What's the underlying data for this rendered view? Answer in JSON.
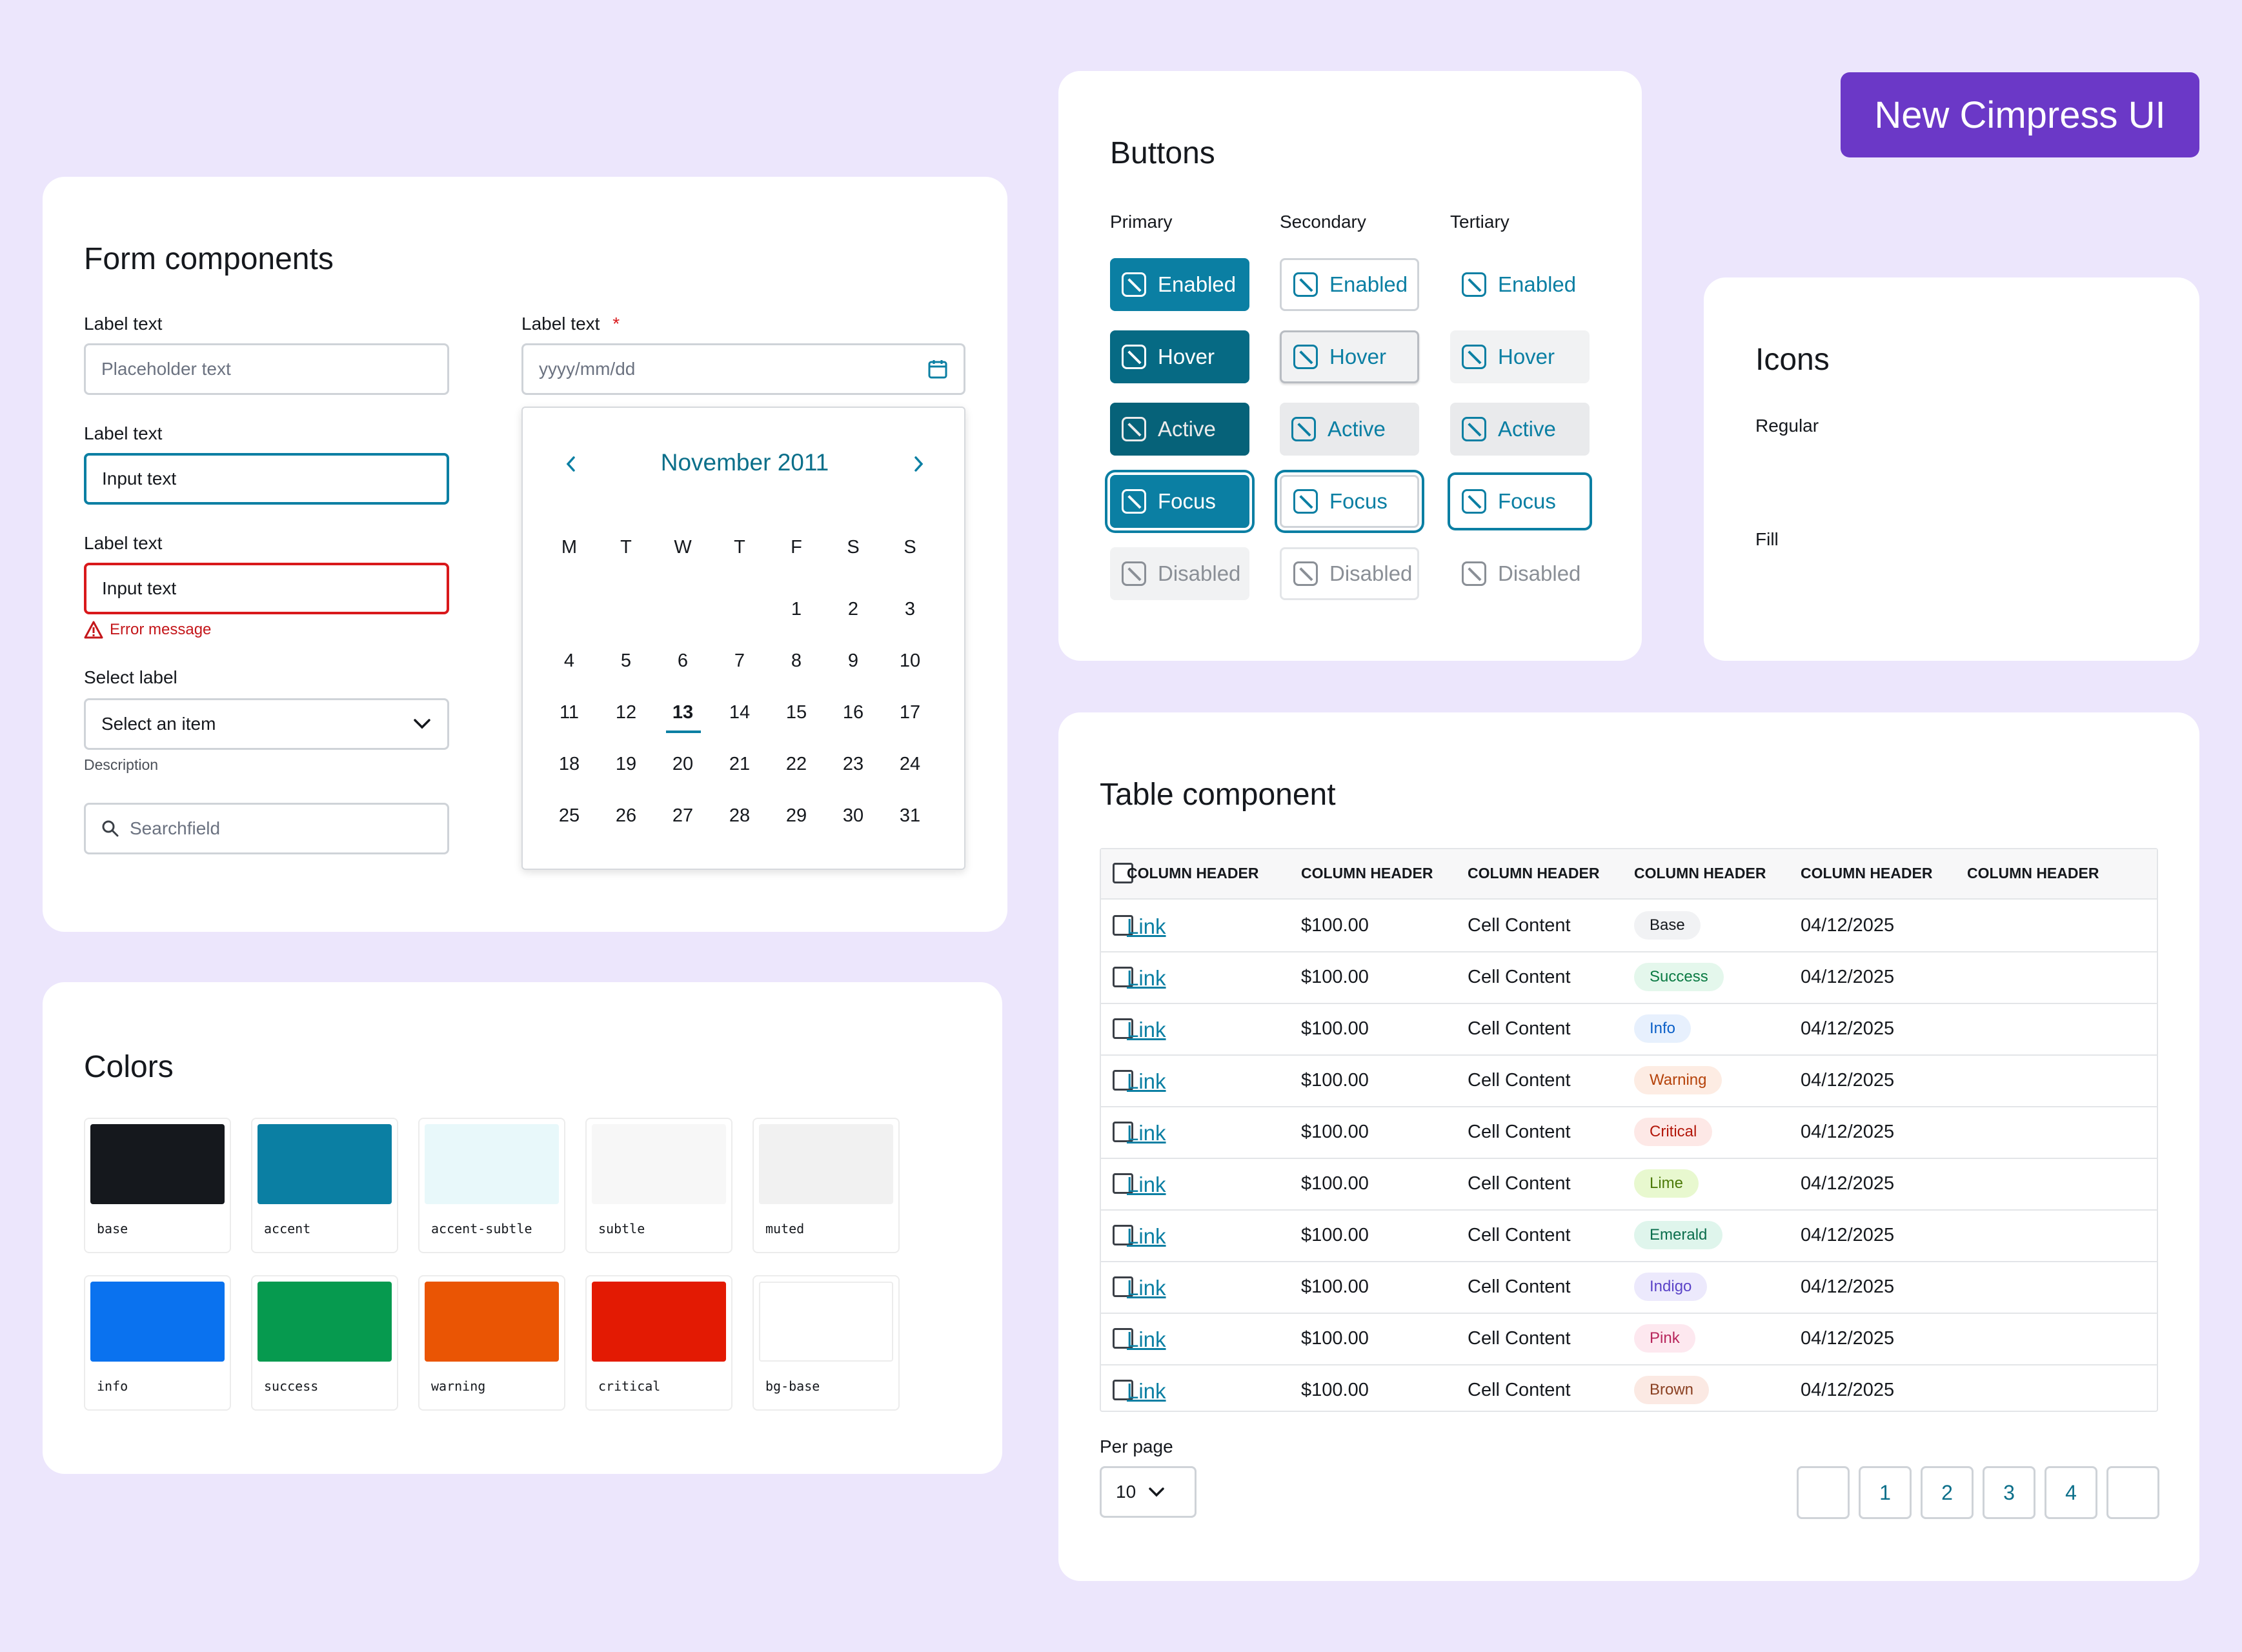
{
  "hero": {
    "title": "New Cimpress UI"
  },
  "colors_theme": {
    "accent": "#0b7fa3",
    "accent_dark": "#066a84",
    "brand_purple": "#6b38c7",
    "error": "#d9191c"
  },
  "form": {
    "title": "Form components",
    "field1": {
      "label": "Label text",
      "placeholder": "Placeholder text"
    },
    "field2": {
      "label": "Label text",
      "value": "Input text"
    },
    "field3": {
      "label": "Label text",
      "value": "Input text",
      "error": "Error message"
    },
    "select": {
      "label": "Select label",
      "value": "Select an item",
      "description": "Description"
    },
    "search": {
      "placeholder": "Searchfield"
    },
    "date": {
      "label": "Label text",
      "required_mark": "*",
      "placeholder": "yyyy/mm/dd"
    },
    "calendar": {
      "month": "November 2011",
      "weekdays": [
        "M",
        "T",
        "W",
        "T",
        "F",
        "S",
        "S"
      ],
      "weeks": [
        [
          "",
          "",
          "",
          "",
          "1",
          "2",
          "3"
        ],
        [
          "4",
          "5",
          "6",
          "7",
          "8",
          "9",
          "10"
        ],
        [
          "11",
          "12",
          "13",
          "14",
          "15",
          "16",
          "17"
        ],
        [
          "18",
          "19",
          "20",
          "21",
          "22",
          "23",
          "24"
        ],
        [
          "25",
          "26",
          "27",
          "28",
          "29",
          "30",
          "31"
        ]
      ],
      "selected": "13"
    }
  },
  "colors": {
    "title": "Colors",
    "swatches": [
      {
        "name": "base",
        "hex": "#15181d"
      },
      {
        "name": "accent",
        "hex": "#0b7fa3"
      },
      {
        "name": "accent-subtle",
        "hex": "#e8f8fa"
      },
      {
        "name": "subtle",
        "hex": "#f7f7f7"
      },
      {
        "name": "muted",
        "hex": "#f1f1f1"
      },
      {
        "name": "info",
        "hex": "#0a72ef"
      },
      {
        "name": "success",
        "hex": "#069a4f"
      },
      {
        "name": "warning",
        "hex": "#ea5504"
      },
      {
        "name": "critical",
        "hex": "#e31a03"
      },
      {
        "name": "bg-base",
        "hex": "#ffffff"
      }
    ]
  },
  "buttons": {
    "title": "Buttons",
    "columns": [
      "Primary",
      "Secondary",
      "Tertiary"
    ],
    "states": [
      "Enabled",
      "Hover",
      "Active",
      "Focus",
      "Disabled"
    ]
  },
  "icons": {
    "title": "Icons",
    "regular_label": "Regular",
    "fill_label": "Fill",
    "names": [
      "trash-icon",
      "truck-icon",
      "calendar-icon",
      "help-icon",
      "pencil-icon",
      "image-icon",
      "gear-icon",
      "lock-icon"
    ]
  },
  "table": {
    "title": "Table component",
    "headers": [
      "COLUMN HEADER",
      "COLUMN HEADER",
      "COLUMN HEADER",
      "COLUMN HEADER",
      "COLUMN HEADER",
      "COLUMN HEADER"
    ],
    "rows": [
      {
        "link": "Link",
        "price": "$100.00",
        "content": "Cell Content",
        "badge": "Base",
        "date": "04/12/2025"
      },
      {
        "link": "Link",
        "price": "$100.00",
        "content": "Cell Content",
        "badge": "Success",
        "date": "04/12/2025"
      },
      {
        "link": "Link",
        "price": "$100.00",
        "content": "Cell Content",
        "badge": "Info",
        "date": "04/12/2025"
      },
      {
        "link": "Link",
        "price": "$100.00",
        "content": "Cell Content",
        "badge": "Warning",
        "date": "04/12/2025"
      },
      {
        "link": "Link",
        "price": "$100.00",
        "content": "Cell Content",
        "badge": "Critical",
        "date": "04/12/2025"
      },
      {
        "link": "Link",
        "price": "$100.00",
        "content": "Cell Content",
        "badge": "Lime",
        "date": "04/12/2025"
      },
      {
        "link": "Link",
        "price": "$100.00",
        "content": "Cell Content",
        "badge": "Emerald",
        "date": "04/12/2025"
      },
      {
        "link": "Link",
        "price": "$100.00",
        "content": "Cell Content",
        "badge": "Indigo",
        "date": "04/12/2025"
      },
      {
        "link": "Link",
        "price": "$100.00",
        "content": "Cell Content",
        "badge": "Pink",
        "date": "04/12/2025"
      },
      {
        "link": "Link",
        "price": "$100.00",
        "content": "Cell Content",
        "badge": "Brown",
        "date": "04/12/2025"
      }
    ],
    "badge_colors": {
      "Base": [
        "#f1f2f4",
        "#15181d"
      ],
      "Success": [
        "#e4f7ec",
        "#0a7a43"
      ],
      "Info": [
        "#e7f0fd",
        "#0a5fc8"
      ],
      "Warning": [
        "#fdece3",
        "#b5420a"
      ],
      "Critical": [
        "#fde8e6",
        "#b3170a"
      ],
      "Lime": [
        "#e8f8cf",
        "#4c7a08"
      ],
      "Emerald": [
        "#dff5ec",
        "#0b6e4d"
      ],
      "Indigo": [
        "#ece9fc",
        "#5b44c8"
      ],
      "Pink": [
        "#fde8ef",
        "#b8265c"
      ],
      "Brown": [
        "#fbe9e3",
        "#8a4022"
      ]
    },
    "per_page_label": "Per page",
    "per_page_value": "10",
    "pages": [
      "1",
      "2",
      "3",
      "4"
    ]
  }
}
